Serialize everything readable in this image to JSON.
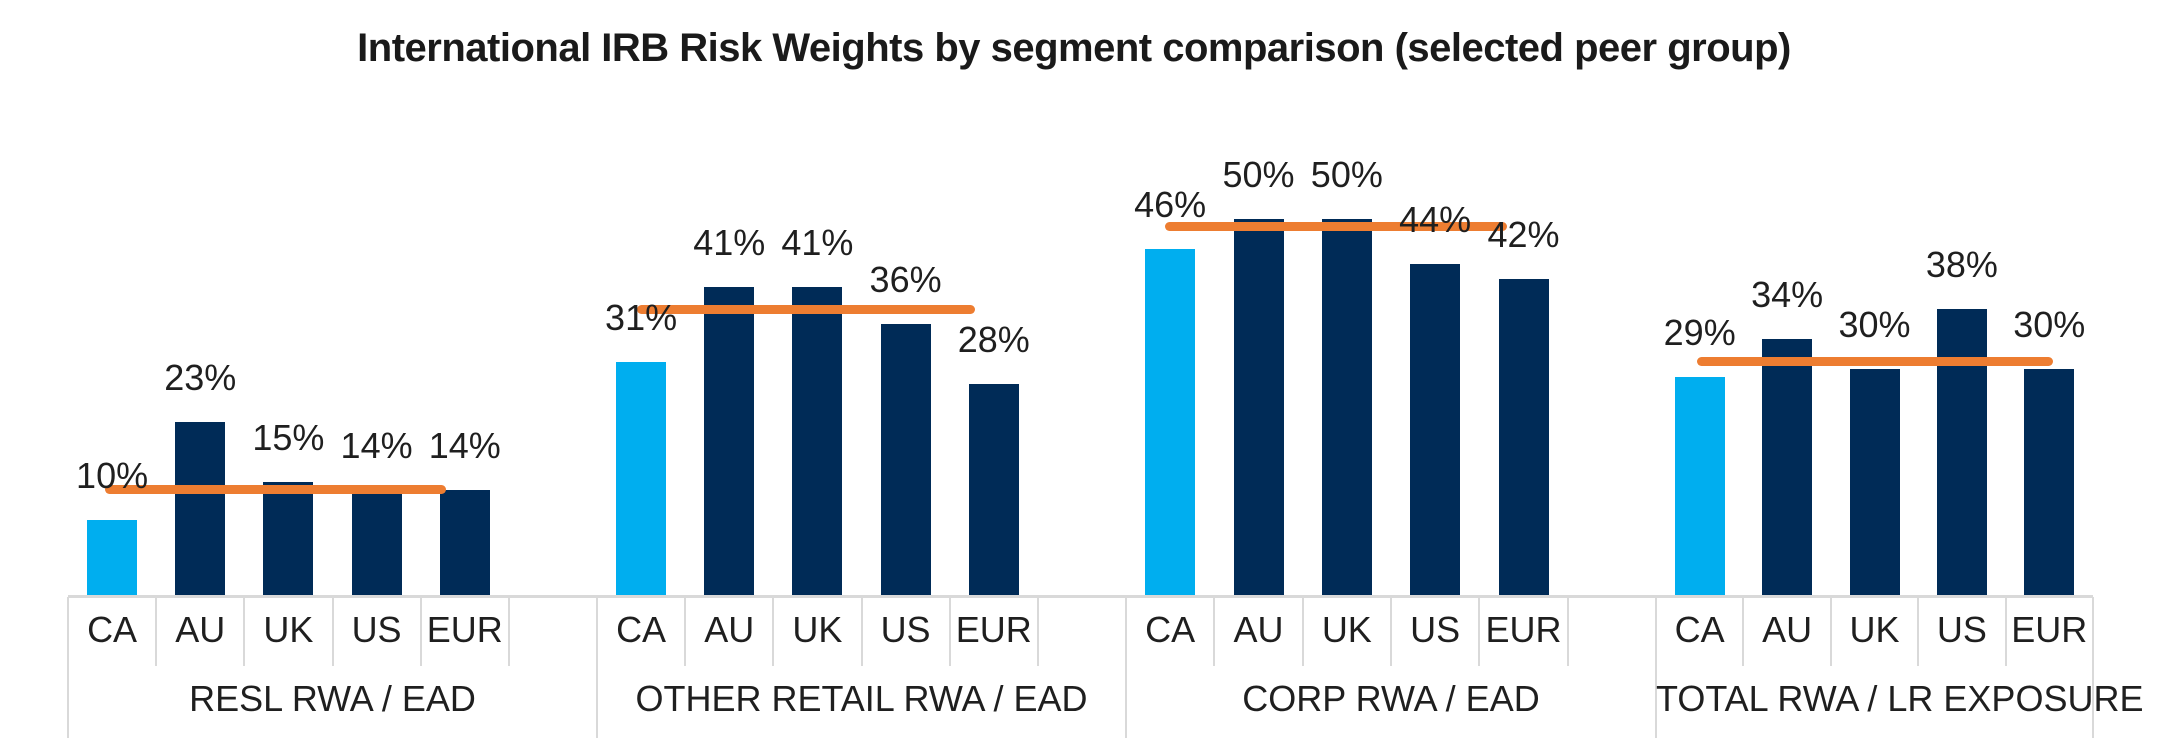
{
  "chart_data": {
    "type": "bar",
    "title": "International IRB Risk Weights by segment comparison (selected peer group)",
    "value_format": "percent",
    "legend": "none",
    "grid": "off",
    "ylim": [
      0,
      53
    ],
    "categories": [
      "CA",
      "AU",
      "UK",
      "US",
      "EUR"
    ],
    "highlight_category": "CA",
    "groups": [
      {
        "label": "RESL RWA / EAD",
        "values": [
          10,
          23,
          15,
          14,
          14
        ],
        "benchmark_line": 14
      },
      {
        "label": "OTHER RETAIL RWA / EAD",
        "values": [
          31,
          41,
          41,
          36,
          28
        ],
        "benchmark_line": 38
      },
      {
        "label": "CORP RWA / EAD",
        "values": [
          46,
          50,
          50,
          44,
          42
        ],
        "benchmark_line": 49
      },
      {
        "label": "TOTAL RWA / LR EXPOSURE",
        "values": [
          29,
          34,
          30,
          38,
          30
        ],
        "benchmark_line": 31
      }
    ],
    "colors": {
      "highlight_bar": "#00AEEF",
      "peer_bar": "#002B57",
      "benchmark_line": "#ED7D31",
      "axis_lines": "#D9D9D9",
      "label_text": "#1F1F1F"
    }
  }
}
